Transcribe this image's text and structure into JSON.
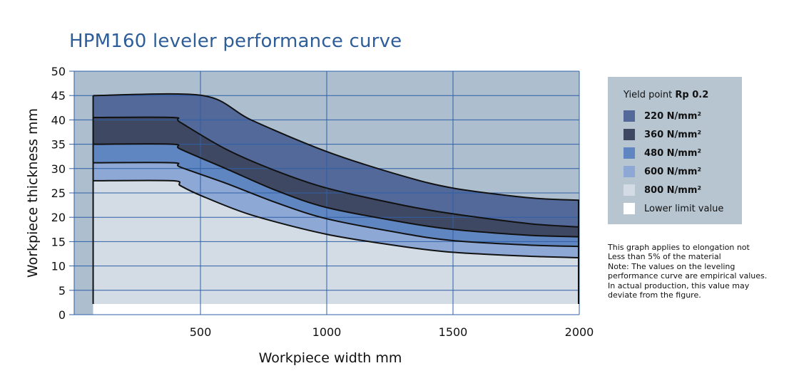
{
  "chart_data": {
    "type": "area",
    "title": "HPM160 leveler performance curve",
    "xlabel": "Workpiece width mm",
    "ylabel": "Workpiece thickness mm",
    "xlim": [
      0,
      2000
    ],
    "ylim": [
      0,
      50
    ],
    "x_ticks": [
      "500",
      "1000",
      "1500",
      "2000"
    ],
    "y_ticks": [
      "0",
      "5",
      "10",
      "15",
      "20",
      "25",
      "30",
      "35",
      "40",
      "45",
      "50"
    ],
    "grid": true,
    "legend_position": "right",
    "legend_title_prefix": "Yield point ",
    "legend_title_bold": "Rp 0.2",
    "series": [
      {
        "name": "220 N/mm²",
        "color": "#52699a",
        "points": [
          [
            75,
            45
          ],
          [
            510,
            45
          ],
          [
            700,
            40
          ],
          [
            1000,
            33.5
          ],
          [
            1300,
            28.5
          ],
          [
            1500,
            26
          ],
          [
            1800,
            24
          ],
          [
            2000,
            23.5
          ]
        ]
      },
      {
        "name": "360 N/mm²",
        "color": "#3e4862",
        "points": [
          [
            75,
            40.5
          ],
          [
            390,
            40.5
          ],
          [
            420,
            39.5
          ],
          [
            600,
            34
          ],
          [
            800,
            29.5
          ],
          [
            1000,
            26
          ],
          [
            1300,
            22.5
          ],
          [
            1500,
            20.7
          ],
          [
            1800,
            18.7
          ],
          [
            2000,
            18
          ]
        ]
      },
      {
        "name": "480 N/mm²",
        "color": "#5f86c1",
        "points": [
          [
            75,
            35
          ],
          [
            390,
            35
          ],
          [
            420,
            34
          ],
          [
            600,
            30
          ],
          [
            800,
            25.5
          ],
          [
            1000,
            22
          ],
          [
            1300,
            19
          ],
          [
            1500,
            17.5
          ],
          [
            1800,
            16.3
          ],
          [
            2000,
            16
          ]
        ]
      },
      {
        "name": "600 N/mm²",
        "color": "#8ea8d6",
        "points": [
          [
            75,
            31.2
          ],
          [
            390,
            31.2
          ],
          [
            420,
            30.3
          ],
          [
            600,
            27
          ],
          [
            800,
            23
          ],
          [
            1000,
            19.7
          ],
          [
            1300,
            16.7
          ],
          [
            1500,
            15.2
          ],
          [
            1800,
            14.3
          ],
          [
            2000,
            14
          ]
        ]
      },
      {
        "name": "800 N/mm²",
        "color": "#d3dce4",
        "points": [
          [
            75,
            27.5
          ],
          [
            390,
            27.5
          ],
          [
            420,
            26.5
          ],
          [
            500,
            24.5
          ],
          [
            700,
            20.5
          ],
          [
            1000,
            16.5
          ],
          [
            1300,
            14
          ],
          [
            1500,
            12.8
          ],
          [
            1800,
            12
          ],
          [
            2000,
            11.7
          ]
        ]
      },
      {
        "name": "Lower limit value",
        "color": "#ffffff",
        "points": [
          [
            75,
            2.2
          ],
          [
            2000,
            2.2
          ]
        ]
      }
    ],
    "plot_background": "#adbfce",
    "band_outline_color": "#111111"
  },
  "note_lines": [
    "This graph applies to elongation not",
    "Less than 5% of the material",
    "Note: The values on the leveling",
    "performance curve are empirical values.",
    "In actual production, this value may",
    "deviate from the figure."
  ],
  "colors": {
    "title": "#2e5e9a",
    "legend_bg": "#b7c5d1",
    "grid": "#2f5fa8"
  }
}
